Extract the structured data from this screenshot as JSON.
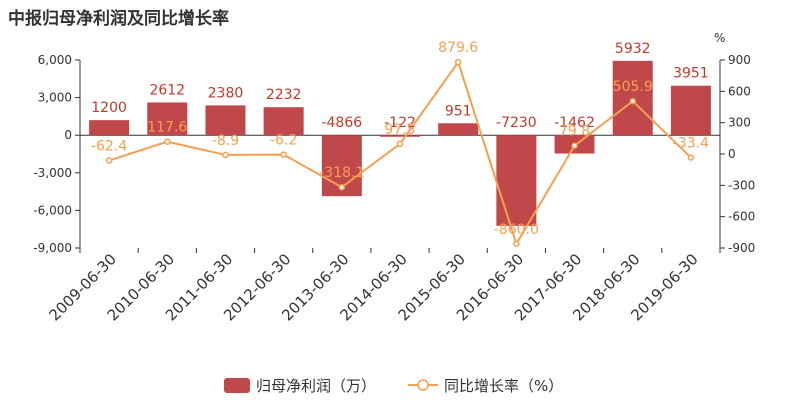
{
  "chart_data": {
    "type": "bar",
    "title": "中报归母净利润及同比增长率",
    "categories": [
      "2009-06-30",
      "2010-06-30",
      "2011-06-30",
      "2012-06-30",
      "2013-06-30",
      "2014-06-30",
      "2015-06-30",
      "2016-06-30",
      "2017-06-30",
      "2018-06-30",
      "2019-06-30"
    ],
    "series": [
      {
        "name": "归母净利润（万）",
        "type": "bar",
        "axis": "left",
        "color": "#c0484a",
        "values": [
          1200,
          2612,
          2380,
          2232,
          -4866,
          -122,
          951,
          -7230,
          -1462,
          5932,
          3951
        ],
        "labels": [
          "1200",
          "2612",
          "2380",
          "2232",
          "-4866",
          "-122",
          "951",
          "-7230",
          "-1462",
          "5932",
          "3951"
        ]
      },
      {
        "name": "同比增长率（%）",
        "type": "line",
        "axis": "right",
        "color": "#f5a051",
        "values": [
          -62.4,
          117.6,
          -8.9,
          -6.2,
          -318.1,
          97.5,
          879.6,
          -860.0,
          79.8,
          505.9,
          -33.4
        ],
        "labels": [
          "-62.4",
          "117.6",
          "-8.9",
          "-6.2",
          "-318.1",
          "97.5",
          "879.6",
          "-860.0",
          "79.8",
          "505.9",
          "-33.4"
        ]
      }
    ],
    "y_left": {
      "min": -9000,
      "max": 6000,
      "ticks": [
        "6,000",
        "3,000",
        "0",
        "-3,000",
        "-6,000",
        "-9,000"
      ],
      "tick_values": [
        6000,
        3000,
        0,
        -3000,
        -6000,
        -9000
      ]
    },
    "y_right": {
      "min": -900,
      "max": 900,
      "unit": "%",
      "ticks": [
        "900",
        "600",
        "300",
        "0",
        "-300",
        "-600",
        "-900"
      ],
      "tick_values": [
        900,
        600,
        300,
        0,
        -300,
        -600,
        -900
      ]
    },
    "grid": false,
    "legend": "bottom-center"
  }
}
